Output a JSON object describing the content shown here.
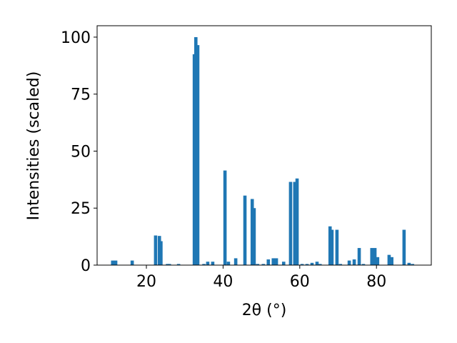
{
  "chart_data": {
    "type": "bar",
    "xlabel": "2θ (°)",
    "ylabel": "Intensities (scaled)",
    "color": "#1f77b4",
    "x": [
      11.2,
      12.0,
      16.3,
      22.4,
      23.4,
      23.8,
      25.5,
      26.0,
      28.4,
      32.5,
      32.9,
      33.4,
      35.0,
      36.0,
      37.3,
      40.5,
      41.4,
      43.3,
      45.7,
      47.6,
      48.1,
      49.0,
      50.5,
      51.8,
      53.1,
      53.9,
      55.8,
      57.6,
      58.7,
      59.3,
      60.6,
      61.9,
      63.2,
      64.5,
      65.3,
      67.9,
      68.4,
      69.7,
      70.6,
      72.9,
      74.2,
      75.5,
      76.6,
      78.8,
      79.6,
      80.3,
      83.3,
      84.0,
      87.2,
      88.5,
      89.4
    ],
    "values": [
      2,
      2,
      2,
      13,
      12.8,
      10.5,
      0.5,
      0.5,
      0.5,
      92.5,
      100,
      96.5,
      0.5,
      1.5,
      1.5,
      41.5,
      1.5,
      3,
      30.5,
      29,
      25,
      0.5,
      0.5,
      2.5,
      3,
      3,
      1.5,
      36.5,
      36.5,
      38,
      0.5,
      0.5,
      1,
      1.5,
      0.5,
      17,
      15.5,
      15.5,
      0.5,
      2,
      2.5,
      7.5,
      0.5,
      7.5,
      7.5,
      3.5,
      4.5,
      3.5,
      15.5,
      1,
      0.5
    ],
    "xlim": [
      7.15,
      94.3
    ],
    "ylim": [
      0,
      105
    ],
    "xticks": [
      20,
      40,
      60,
      80
    ],
    "yticks": [
      0,
      25,
      50,
      75,
      100
    ]
  }
}
